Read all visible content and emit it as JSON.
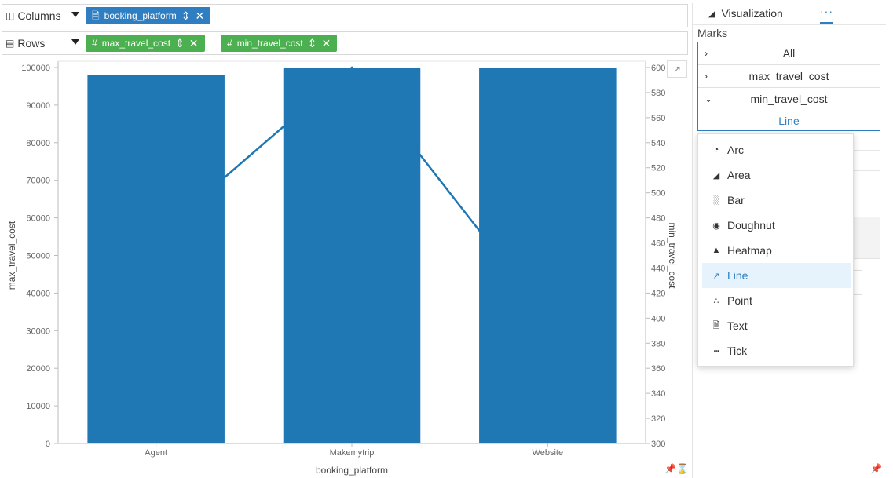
{
  "shelves": {
    "columns": {
      "label": "Columns",
      "pills": [
        {
          "label": "booking_platform"
        }
      ]
    },
    "rows": {
      "label": "Rows",
      "pills": [
        {
          "label": "max_travel_cost"
        },
        {
          "label": "min_travel_cost"
        }
      ]
    }
  },
  "chart_data": {
    "type": "bar",
    "categories": [
      "Agent",
      "Makemytrip",
      "Website"
    ],
    "xlabel": "booking_platform",
    "series": [
      {
        "name": "max_travel_cost",
        "type": "bar",
        "axis": "left",
        "values": [
          98000,
          100000,
          100000
        ]
      },
      {
        "name": "min_travel_cost",
        "type": "line",
        "axis": "right",
        "values": [
          465,
          600,
          400
        ]
      }
    ],
    "y_left": {
      "label": "max_travel_cost",
      "lim": [
        0,
        100000
      ],
      "ticks": [
        0,
        10000,
        20000,
        30000,
        40000,
        50000,
        60000,
        70000,
        80000,
        90000,
        100000
      ]
    },
    "y_right": {
      "label": "min_travel_cost",
      "lim": [
        300,
        600
      ],
      "ticks": [
        300,
        320,
        340,
        360,
        380,
        400,
        420,
        440,
        460,
        480,
        500,
        520,
        540,
        560,
        580,
        600
      ]
    },
    "colors": {
      "bar": "#1f77b4",
      "line": "#1f77b4"
    },
    "grid": false
  },
  "panel": {
    "tab_visualization": "Visualization",
    "tab_more": "···",
    "marks_label": "Marks",
    "marks_rows": [
      {
        "label": "All",
        "chevron": "›"
      },
      {
        "label": "max_travel_cost",
        "chevron": "›"
      },
      {
        "label": "min_travel_cost",
        "chevron": "⌄"
      }
    ],
    "mark_type_selected": "Line"
  },
  "dropdown": {
    "items": [
      {
        "label": "Arc",
        "icon": "arc-icon"
      },
      {
        "label": "Area",
        "icon": "area-icon"
      },
      {
        "label": "Bar",
        "icon": "bar-icon"
      },
      {
        "label": "Doughnut",
        "icon": "doughnut-icon"
      },
      {
        "label": "Heatmap",
        "icon": "heatmap-icon"
      },
      {
        "label": "Line",
        "icon": "line-icon",
        "active": true
      },
      {
        "label": "Point",
        "icon": "point-icon"
      },
      {
        "label": "Text",
        "icon": "text-icon"
      },
      {
        "label": "Tick",
        "icon": "tick-icon"
      }
    ]
  }
}
